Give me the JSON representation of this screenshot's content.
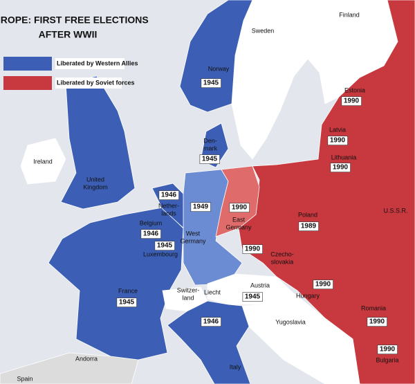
{
  "title": [
    "EUROPE: FIRST FREE ELECTIONS",
    "AFTER WWII"
  ],
  "legend": [
    {
      "label": "Liberated by Western Allies",
      "color": "#3c5fb5"
    },
    {
      "label": "Liberated by Soviet forces",
      "color": "#c7383f"
    }
  ],
  "regions": [
    {
      "label": [
        "Finland"
      ]
    },
    {
      "label": [
        "Sweden"
      ]
    },
    {
      "label": [
        "Norway"
      ],
      "year": 1945
    },
    {
      "label": [
        "Estonia"
      ],
      "year": 1990
    },
    {
      "label": [
        "Latvia"
      ],
      "year": 1990
    },
    {
      "label": [
        "Lithuania"
      ],
      "year": 1990
    },
    {
      "label": [
        "Den-",
        "mark"
      ],
      "year": 1945
    },
    {
      "label": [
        "Ireland"
      ]
    },
    {
      "label": [
        "United",
        "Kingdom"
      ]
    },
    {
      "label": [
        "Nether-",
        "lands"
      ],
      "year": 1946
    },
    {
      "label": [
        "Belgium"
      ],
      "year": 1946
    },
    {
      "label": [
        "Luxembourg"
      ],
      "year": 1945
    },
    {
      "label": [
        "West",
        "Germany"
      ],
      "year": 1949
    },
    {
      "label": [
        "East",
        "Germany"
      ],
      "year": 1990
    },
    {
      "label": [
        "Poland"
      ],
      "year": 1989
    },
    {
      "label": [
        "U.S.S.R."
      ]
    },
    {
      "label": [
        "Czecho-",
        "slovakia"
      ],
      "year": 1990
    },
    {
      "label": [
        "Austria"
      ],
      "year": 1945
    },
    {
      "label": [
        "Switzer-",
        "land"
      ]
    },
    {
      "label": [
        "Liecht"
      ]
    },
    {
      "label": [
        "Hungary"
      ],
      "year": 1990
    },
    {
      "label": [
        "Romania"
      ],
      "year": 1990
    },
    {
      "label": [
        "France"
      ],
      "year": 1945
    },
    {
      "label": [
        "Italy"
      ],
      "year": 1946
    },
    {
      "label": [
        "Yugoslavia"
      ]
    },
    {
      "label": [
        "Bulgaria"
      ],
      "year": 1990
    },
    {
      "label": [
        "Andorra"
      ]
    },
    {
      "label": [
        "Spain"
      ]
    }
  ]
}
